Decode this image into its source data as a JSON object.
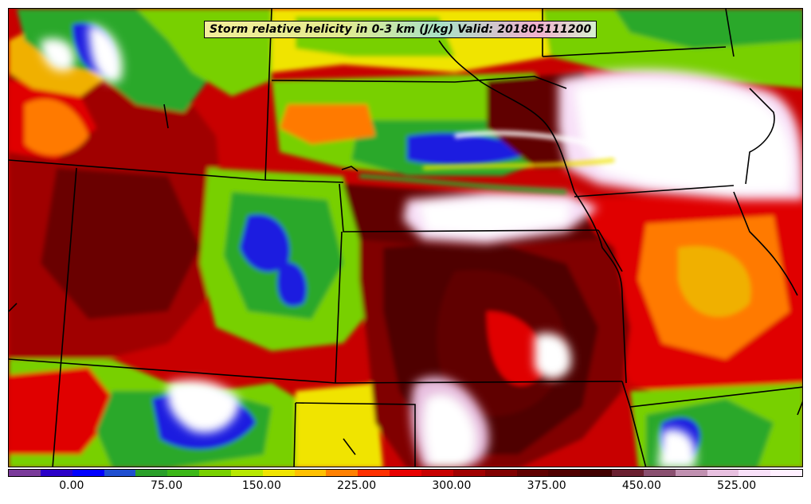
{
  "title": "Storm relative helicity in 0-3 km (J/kg) Valid: 201805111200",
  "colorbar": {
    "colors": [
      "#7a3a9a",
      "#2b00c8",
      "#0000ff",
      "#1f4fd0",
      "#2aa02a",
      "#3cb818",
      "#78d000",
      "#b8e800",
      "#f0e400",
      "#ffc000",
      "#ff8000",
      "#ff3000",
      "#e80000",
      "#c80000",
      "#a00000",
      "#800000",
      "#600000",
      "#500000",
      "#400000",
      "#6a2030",
      "#8a5070",
      "#c090b0",
      "#e8c0e0",
      "#f8e0f8",
      "#fff0ff"
    ],
    "ticks": [
      "0.00",
      "75.00",
      "150.00",
      "225.00",
      "300.00",
      "375.00",
      "450.00",
      "525.00"
    ]
  },
  "map_colors": {
    "deep_red": "#b00000",
    "dark_maroon": "#5a0000",
    "red": "#e00000",
    "orange": "#ff7a00",
    "yellow": "#f0e400",
    "lime": "#a8e000",
    "green": "#2aa82a",
    "blue": "#1a1ae0",
    "purple": "#7a3a9a",
    "pink": "#e8c0e0",
    "white": "#ffffff",
    "border": "#000000"
  }
}
